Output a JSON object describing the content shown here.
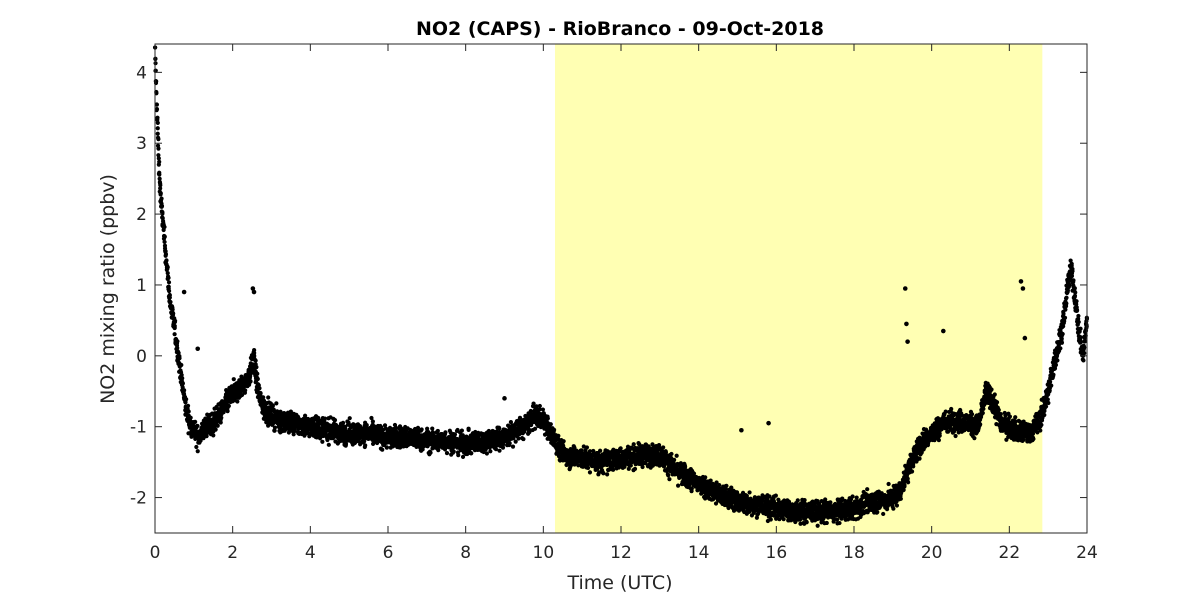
{
  "chart_data": {
    "type": "scatter",
    "title": "NO2 (CAPS) - RioBranco - 09-Oct-2018",
    "xlabel": "Time (UTC)",
    "ylabel": "NO2 mixing ratio (ppbv)",
    "xlim": [
      0,
      24
    ],
    "ylim": [
      -2.5,
      4.4
    ],
    "x_ticks": [
      0,
      2,
      4,
      6,
      8,
      10,
      12,
      14,
      16,
      18,
      20,
      22,
      24
    ],
    "y_ticks": [
      -2,
      -1,
      0,
      1,
      2,
      3,
      4
    ],
    "y_tick_labels": [
      "-2",
      "-1",
      "0",
      "1",
      "2",
      "3",
      "4"
    ],
    "grid": false,
    "marker_color": "#000000",
    "shaded_interval": {
      "x_start": 10.3,
      "x_end": 22.85,
      "color": "#ffffb3"
    },
    "series": [
      {
        "x": [
          0.0,
          0.05,
          0.1,
          0.15,
          0.2,
          0.25,
          0.3,
          0.35,
          0.4,
          0.5,
          0.6,
          0.7,
          0.8,
          0.9,
          1.0,
          1.1,
          1.2,
          1.3,
          1.5,
          1.7,
          1.9,
          2.1,
          2.3,
          2.45,
          2.55,
          2.6,
          2.7,
          2.8,
          3.0,
          3.2,
          3.5,
          4.0,
          4.5,
          5.0,
          5.5,
          6.0,
          6.5,
          7.0,
          7.5,
          8.0,
          8.5,
          9.0,
          9.5,
          9.8,
          10.0,
          10.2,
          10.4,
          10.6,
          11.0,
          11.5,
          12.0,
          12.5,
          13.0,
          13.2,
          13.5,
          14.0,
          14.5,
          15.0,
          15.5,
          16.0,
          16.5,
          17.0,
          17.5,
          18.0,
          18.5,
          19.0,
          19.2,
          19.4,
          19.6,
          19.8,
          20.0,
          20.3,
          20.6,
          20.9,
          21.2,
          21.4,
          21.6,
          21.8,
          22.0,
          22.2,
          22.4,
          22.6,
          22.8,
          23.0,
          23.2,
          23.4,
          23.5,
          23.6,
          23.7,
          23.8,
          23.9,
          24.0
        ],
        "y": [
          4.3,
          3.5,
          2.7,
          2.2,
          1.9,
          1.6,
          1.3,
          1.0,
          0.7,
          0.4,
          0.0,
          -0.4,
          -0.75,
          -0.95,
          -1.05,
          -1.15,
          -1.1,
          -1.0,
          -0.95,
          -0.8,
          -0.6,
          -0.5,
          -0.4,
          -0.25,
          0.0,
          -0.3,
          -0.6,
          -0.75,
          -0.85,
          -0.9,
          -0.95,
          -1.0,
          -1.05,
          -1.1,
          -1.1,
          -1.15,
          -1.15,
          -1.2,
          -1.2,
          -1.25,
          -1.2,
          -1.15,
          -1.0,
          -0.85,
          -0.9,
          -1.1,
          -1.3,
          -1.4,
          -1.45,
          -1.5,
          -1.45,
          -1.4,
          -1.4,
          -1.5,
          -1.65,
          -1.8,
          -1.95,
          -2.05,
          -2.1,
          -2.15,
          -2.2,
          -2.2,
          -2.2,
          -2.15,
          -2.05,
          -2.0,
          -1.9,
          -1.6,
          -1.35,
          -1.2,
          -1.1,
          -0.95,
          -0.9,
          -0.95,
          -1.0,
          -0.5,
          -0.7,
          -0.95,
          -1.0,
          -1.05,
          -1.1,
          -1.05,
          -0.9,
          -0.5,
          0.0,
          0.5,
          1.0,
          1.2,
          0.8,
          0.3,
          0.0,
          0.5
        ]
      }
    ],
    "outliers": {
      "x": [
        0.75,
        1.1,
        2.52,
        2.55,
        9.0,
        15.1,
        15.8,
        19.32,
        19.35,
        19.38,
        20.3,
        22.3,
        22.35,
        22.4
      ],
      "y": [
        0.9,
        0.1,
        0.95,
        0.9,
        -0.6,
        -1.05,
        -0.95,
        0.95,
        0.45,
        0.2,
        0.35,
        1.05,
        0.95,
        0.25
      ]
    }
  }
}
